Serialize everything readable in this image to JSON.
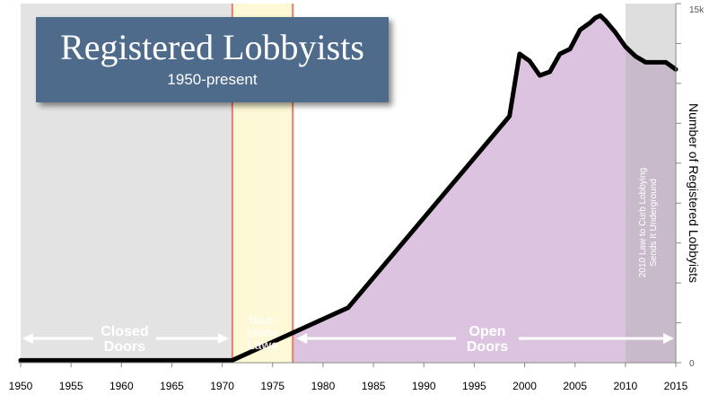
{
  "header": {
    "title": "Registered Lobbyists",
    "subtitle": "1950-present"
  },
  "chart_data": {
    "type": "area",
    "title": "Registered Lobbyists",
    "subtitle": "1950-present",
    "ylabel": "Number of Registered Lobbyists",
    "xlabel": "",
    "xlim": [
      1950,
      2015
    ],
    "ylim": [
      0,
      15000
    ],
    "x_ticks": [
      "1950",
      "1955",
      "1960",
      "1965",
      "1970",
      "1975",
      "1980",
      "1985",
      "1990",
      "1995",
      "2000",
      "2005",
      "2010",
      "2015"
    ],
    "x_tick_values": [
      1950,
      1955,
      1960,
      1965,
      1970,
      1975,
      1980,
      1985,
      1990,
      1995,
      2000,
      2005,
      2010,
      2015
    ],
    "y_tick_labels": [
      {
        "value": 15000,
        "label": "15k"
      },
      {
        "value": 0,
        "label": "0"
      }
    ],
    "y_minor_ticks": [
      13333,
      11667,
      10000,
      8333,
      6667,
      5000,
      3333,
      1667
    ],
    "series": [
      {
        "x": [
          1950,
          1971,
          1982.5,
          1998.5,
          1999.5,
          2000.5,
          2001.5,
          2002.5,
          2003.5,
          2004.5,
          2005.5,
          2006.5,
          2007,
          2007.5,
          2008,
          2009,
          2010,
          2011,
          2012,
          2013,
          2014,
          2015
        ],
        "y": [
          100,
          100,
          2300,
          10300,
          12900,
          12600,
          12000,
          12150,
          12900,
          13100,
          13900,
          14200,
          14400,
          14500,
          14300,
          13800,
          13200,
          12800,
          12550,
          12550,
          12550,
          12250
        ]
      }
    ],
    "eras": [
      {
        "label_lines": [
          "Closed",
          "Doors"
        ],
        "x_start": 1950,
        "x_end": 1971,
        "color": "#e3e3e3"
      },
      {
        "label_lines": [
          "Sun-",
          "shine",
          "Laws"
        ],
        "x_start": 1971,
        "x_end": 1977,
        "color": "#fdf8d6"
      },
      {
        "label_lines": [
          "Open",
          "Doors"
        ],
        "x_start": 1977,
        "x_end": 2015,
        "color": "#d9c0dd"
      }
    ],
    "annotation": {
      "x_start": 2010,
      "x_end": 2015,
      "lines": [
        "2010 Law to Curb Lobbying",
        "Sends It Underground"
      ]
    },
    "colors": {
      "line": "#000000",
      "area_fill": "#dcc3e0",
      "closed_doors": "#e3e3e3",
      "sunshine": "#fdf8d6",
      "boundary": "#e87b6e",
      "annotation_band": "#a9a9a9"
    },
    "grid": false,
    "legend": "none"
  }
}
